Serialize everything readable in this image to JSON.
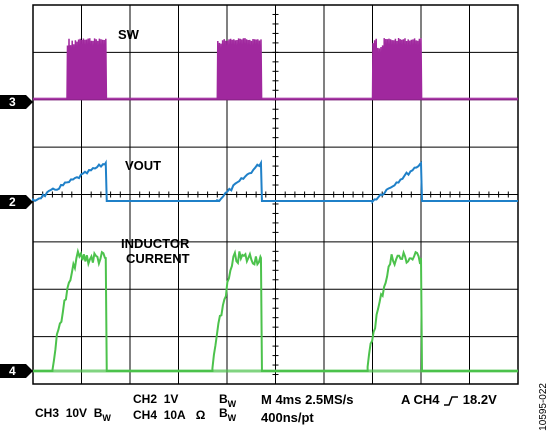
{
  "chart_data": {
    "type": "line",
    "title": "",
    "grid": {
      "divisions_x": 10,
      "divisions_y": 8
    },
    "series": [
      {
        "name": "SW",
        "channel_marker": "3",
        "color": "#a0289e",
        "bursts": [
          [
            0.07,
            0.15
          ],
          [
            0.38,
            0.47
          ],
          [
            0.7,
            0.8
          ]
        ]
      },
      {
        "name": "VOUT",
        "channel_marker": "2",
        "color": "#1f80c8",
        "ramps": [
          [
            0.0,
            0.15
          ],
          [
            0.38,
            0.47
          ],
          [
            0.7,
            0.8
          ]
        ]
      },
      {
        "name": "INDUCTOR CURRENT",
        "channel_marker": "4",
        "color": "#4cc24c",
        "pulses": [
          [
            0.04,
            0.15
          ],
          [
            0.37,
            0.47
          ],
          [
            0.69,
            0.8
          ]
        ]
      }
    ],
    "labels": {
      "sw": "SW",
      "vout": "VOUT",
      "inductor_line1": "INDUCTOR",
      "inductor_line2": "CURRENT"
    },
    "markers": {
      "ch3": "3",
      "ch2": "2",
      "ch4": "4"
    }
  },
  "footer": {
    "ch3": "CH3",
    "ch3_scale": "10V",
    "bw": "B",
    "bw_sub": "W",
    "ch2": "CH2",
    "ch2_scale": "1V",
    "ch4": "CH4",
    "ch4_scale": "10A",
    "omega": "Ω",
    "timebase": "M 4ms 2.5MS/s",
    "points": "400ns/pt",
    "trigger": "A  CH4",
    "trigger_level": "18.2V"
  },
  "figure_id": "10595-022"
}
